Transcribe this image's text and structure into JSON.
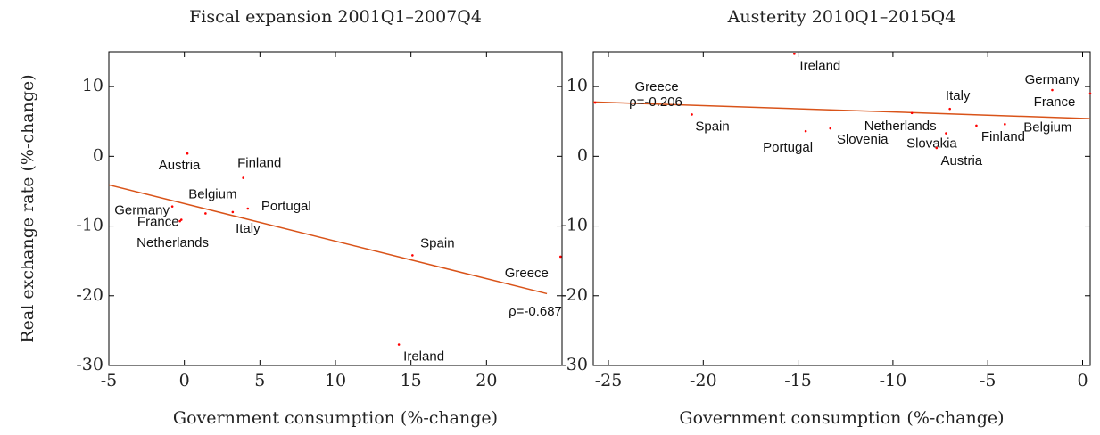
{
  "chart_data": [
    {
      "type": "scatter",
      "title": "Fiscal expansion 2001Q1–2007Q4",
      "x_label": "Government consumption (%-change)",
      "y_label": "Real exchange rate (%-change)",
      "labels": [
        "Austria",
        "Finland",
        "Belgium",
        "Portugal",
        "Italy",
        "Germany",
        "France",
        "Netherlands",
        "Spain",
        "Greece",
        "Ireland"
      ],
      "x": [
        0.2,
        3.9,
        1.4,
        4.2,
        3.2,
        -0.8,
        -0.2,
        -0.3,
        15.1,
        24.9,
        14.2
      ],
      "y": [
        0.4,
        -3.1,
        -8.2,
        -7.5,
        -8.0,
        -7.2,
        -9.1,
        -9.3,
        -14.2,
        -14.4,
        -27.0
      ],
      "color": "#ff0000",
      "line_color": "#d95319",
      "fit": {
        "x": [
          -5,
          24
        ],
        "y": [
          -4.1,
          -19.7
        ]
      },
      "annotation": "ρ=-0.687",
      "xlim": [
        -5,
        25
      ],
      "ylim": [
        -30,
        15
      ],
      "xticks": [
        -5,
        0,
        5,
        10,
        15,
        20
      ],
      "yticks": [
        -30,
        -20,
        -10,
        0,
        10
      ]
    },
    {
      "type": "scatter",
      "title": "Austerity 2010Q1–2015Q4",
      "x_label": "Government consumption (%-change)",
      "labels": [
        "Ireland",
        "Greece",
        "Spain",
        "Portugal",
        "Slovenia",
        "Netherlands",
        "Slovakia",
        "Austria",
        "Italy",
        "Finland",
        "Belgium",
        "Germany",
        "France"
      ],
      "x": [
        -15.2,
        -25.7,
        -20.6,
        -14.6,
        -13.3,
        -9.0,
        -7.2,
        -7.7,
        -7.0,
        -5.6,
        -4.1,
        -1.6,
        0.4
      ],
      "y": [
        14.7,
        7.7,
        6.0,
        3.6,
        4.0,
        6.2,
        3.3,
        1.2,
        6.8,
        4.4,
        4.6,
        9.5,
        9.0
      ],
      "color": "#ff0000",
      "line_color": "#d95319",
      "fit": {
        "x": [
          -25.8,
          0.4
        ],
        "y": [
          7.8,
          5.4
        ]
      },
      "annotation": "ρ=-0.206",
      "xlim": [
        -25.8,
        0.4
      ],
      "ylim": [
        -30,
        15
      ],
      "xticks": [
        -25,
        -20,
        -15,
        -10,
        -5,
        0
      ],
      "yticks": [
        -30,
        -20,
        -10,
        0,
        10
      ]
    }
  ]
}
